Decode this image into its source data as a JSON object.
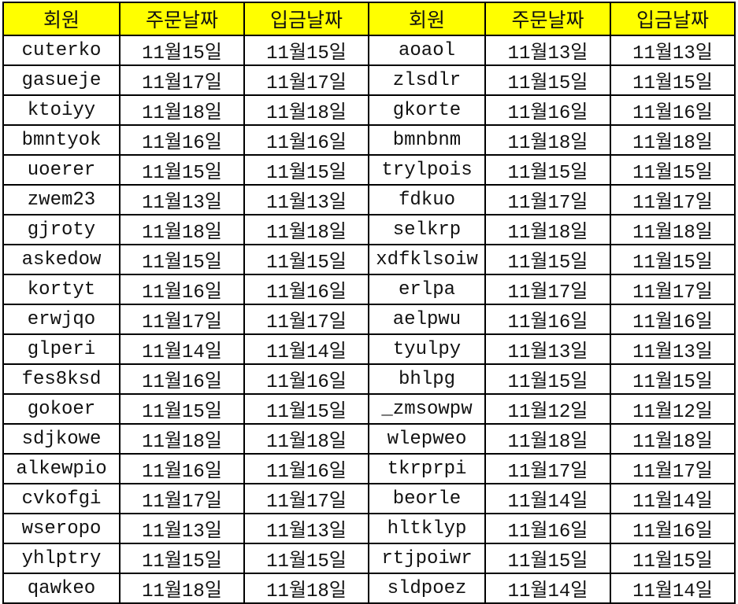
{
  "header_color": "#ffff00",
  "headers": [
    "회원",
    "주문날짜",
    "입금날짜",
    "회원",
    "주문날짜",
    "입금날짜"
  ],
  "rows": [
    [
      "cuterko",
      "11월15일",
      "11월15일",
      "aoaol",
      "11월13일",
      "11월13일"
    ],
    [
      "gasueje",
      "11월17일",
      "11월17일",
      "zlsdlr",
      "11월15일",
      "11월15일"
    ],
    [
      "ktoiyy",
      "11월18일",
      "11월18일",
      "gkorte",
      "11월16일",
      "11월16일"
    ],
    [
      "bmntyok",
      "11월16일",
      "11월16일",
      "bmnbnm",
      "11월18일",
      "11월18일"
    ],
    [
      "uoerer",
      "11월15일",
      "11월15일",
      "trylpois",
      "11월15일",
      "11월15일"
    ],
    [
      "zwem23",
      "11월13일",
      "11월13일",
      "fdkuo",
      "11월17일",
      "11월17일"
    ],
    [
      "gjroty",
      "11월18일",
      "11월18일",
      "selkrp",
      "11월18일",
      "11월18일"
    ],
    [
      "askedow",
      "11월15일",
      "11월15일",
      "xdfklsoiw",
      "11월15일",
      "11월15일"
    ],
    [
      "kortyt",
      "11월16일",
      "11월16일",
      "erlpa",
      "11월17일",
      "11월17일"
    ],
    [
      "erwjqo",
      "11월17일",
      "11월17일",
      "aelpwu",
      "11월16일",
      "11월16일"
    ],
    [
      "glperi",
      "11월14일",
      "11월14일",
      "tyulpy",
      "11월13일",
      "11월13일"
    ],
    [
      "fes8ksd",
      "11월16일",
      "11월16일",
      "bhlpg",
      "11월15일",
      "11월15일"
    ],
    [
      "gokoer",
      "11월15일",
      "11월15일",
      "_zmsowpw",
      "11월12일",
      "11월12일"
    ],
    [
      "sdjkowe",
      "11월18일",
      "11월18일",
      "wlepweo",
      "11월18일",
      "11월18일"
    ],
    [
      "alkewpio",
      "11월16일",
      "11월16일",
      "tkrprpi",
      "11월17일",
      "11월17일"
    ],
    [
      "cvkofgi",
      "11월17일",
      "11월17일",
      "beorle",
      "11월14일",
      "11월14일"
    ],
    [
      "wseropo",
      "11월13일",
      "11월13일",
      "hltklyp",
      "11월16일",
      "11월16일"
    ],
    [
      "yhlptry",
      "11월15일",
      "11월15일",
      "rtjpoiwr",
      "11월15일",
      "11월15일"
    ],
    [
      "qawkeo",
      "11월18일",
      "11월18일",
      "sldpoez",
      "11월14일",
      "11월14일"
    ]
  ]
}
